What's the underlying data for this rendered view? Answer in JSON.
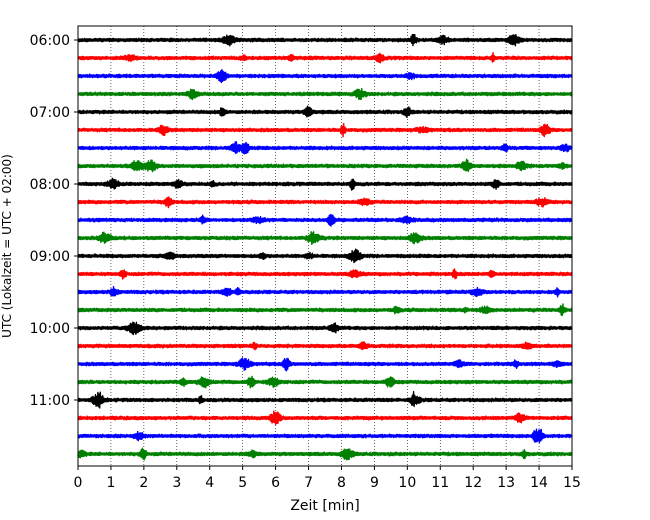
{
  "chart_data": {
    "type": "line",
    "title": "",
    "xlabel": "Zeit  [min]",
    "ylabel": "UTC (Lokalzeit = UTC + 02:00)",
    "xlim": [
      0,
      15
    ],
    "x_ticks": [
      "0",
      "1",
      "2",
      "3",
      "4",
      "5",
      "6",
      "7",
      "8",
      "9",
      "10",
      "11",
      "12",
      "13",
      "14",
      "15"
    ],
    "y_ticks": [
      "06:00",
      "07:00",
      "08:00",
      "09:00",
      "10:00",
      "11:00"
    ],
    "grid": "vertical dotted",
    "row_interval_min": 15,
    "colors_cycle": [
      "#000000",
      "#ff0000",
      "#0000ff",
      "#008000"
    ],
    "rows": [
      {
        "start": "06:00",
        "color": "#000000"
      },
      {
        "start": "06:15",
        "color": "#ff0000"
      },
      {
        "start": "06:30",
        "color": "#0000ff"
      },
      {
        "start": "06:45",
        "color": "#008000"
      },
      {
        "start": "07:00",
        "color": "#000000"
      },
      {
        "start": "07:15",
        "color": "#ff0000"
      },
      {
        "start": "07:30",
        "color": "#0000ff"
      },
      {
        "start": "07:45",
        "color": "#008000"
      },
      {
        "start": "08:00",
        "color": "#000000"
      },
      {
        "start": "08:15",
        "color": "#ff0000"
      },
      {
        "start": "08:30",
        "color": "#0000ff"
      },
      {
        "start": "08:45",
        "color": "#008000"
      },
      {
        "start": "09:00",
        "color": "#000000"
      },
      {
        "start": "09:15",
        "color": "#ff0000"
      },
      {
        "start": "09:30",
        "color": "#0000ff"
      },
      {
        "start": "09:45",
        "color": "#008000"
      },
      {
        "start": "10:00",
        "color": "#000000"
      },
      {
        "start": "10:15",
        "color": "#ff0000"
      },
      {
        "start": "10:30",
        "color": "#0000ff"
      },
      {
        "start": "10:45",
        "color": "#008000"
      },
      {
        "start": "11:00",
        "color": "#000000"
      },
      {
        "start": "11:15",
        "color": "#ff0000"
      },
      {
        "start": "11:30",
        "color": "#0000ff"
      },
      {
        "start": "11:45",
        "color": "#008000"
      }
    ]
  }
}
